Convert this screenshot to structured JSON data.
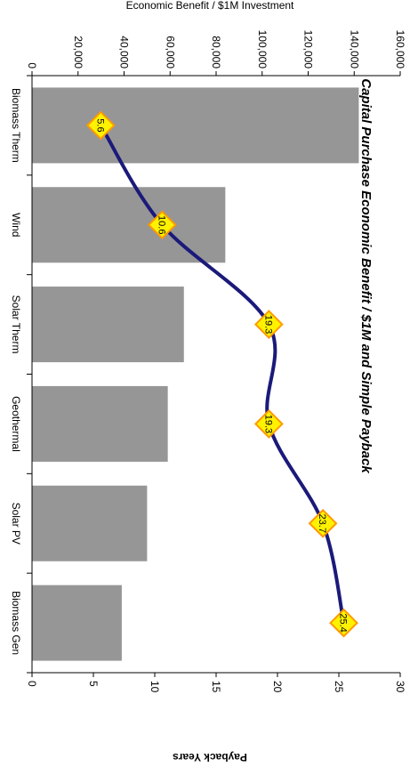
{
  "chart_data": {
    "type": "bar",
    "orientation": "rotated-90",
    "title": "Capital Purchase Economic Benefit / $1M and Simple Payback",
    "categories": [
      "Biomass Therm",
      "Wind",
      "Solar Therm",
      "Geothermal",
      "Solar PV",
      "Biomass Gen"
    ],
    "series": [
      {
        "type": "bar",
        "axis": "primary",
        "values": [
          142000,
          84000,
          66000,
          59000,
          50000,
          39000
        ],
        "color": "#969696"
      },
      {
        "type": "line",
        "axis": "secondary",
        "values": [
          5.6,
          10.6,
          19.3,
          19.3,
          23.7,
          25.4
        ],
        "color": "#1b1a7a",
        "marker_color": "#fff200",
        "marker_edge": "#ff9a00"
      }
    ],
    "data_labels": [
      "5.6",
      "10.6",
      "19.3",
      "19.3",
      "23.7",
      "25.4"
    ],
    "primary_axis": {
      "label": "Economic Benefit / $1M Investment",
      "range": [
        0,
        160000
      ],
      "ticks": [
        "0",
        "20,000",
        "40,000",
        "60,000",
        "80,000",
        "100,000",
        "120,000",
        "140,000",
        "160,000"
      ]
    },
    "secondary_axis": {
      "label": "Payback Years",
      "range": [
        0,
        30
      ],
      "ticks": [
        "0",
        "5",
        "10",
        "15",
        "20",
        "25",
        "30"
      ]
    },
    "grid": false,
    "legend": "none"
  }
}
